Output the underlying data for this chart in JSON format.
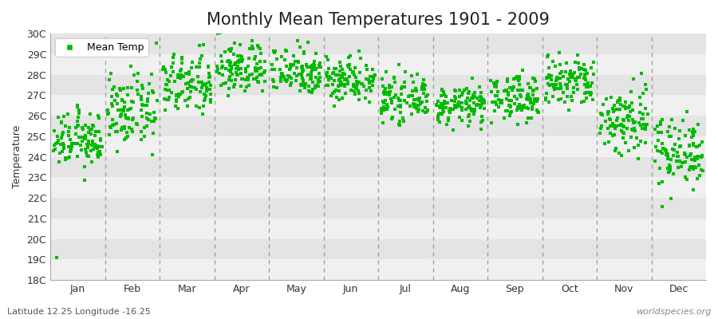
{
  "title": "Monthly Mean Temperatures 1901 - 2009",
  "ylabel": "Temperature",
  "xlabel_labels": [
    "Jan",
    "Feb",
    "Mar",
    "Apr",
    "May",
    "Jun",
    "Jul",
    "Aug",
    "Sep",
    "Oct",
    "Nov",
    "Dec"
  ],
  "ytick_labels": [
    "18C",
    "19C",
    "20C",
    "21C",
    "22C",
    "23C",
    "24C",
    "25C",
    "26C",
    "27C",
    "28C",
    "29C",
    "30C"
  ],
  "ytick_values": [
    18,
    19,
    20,
    21,
    22,
    23,
    24,
    25,
    26,
    27,
    28,
    29,
    30
  ],
  "ylim": [
    18,
    30
  ],
  "dot_color": "#00bb00",
  "bg_color": "#ffffff",
  "plot_bg_color": "#ffffff",
  "stripe_color_1": "#f0f0f0",
  "stripe_color_2": "#e4e4e4",
  "vline_color": "#999999",
  "subtitle": "Latitude 12.25 Longitude -16.25",
  "watermark": "worldspecies.org",
  "legend_label": "Mean Temp",
  "title_fontsize": 15,
  "label_fontsize": 9,
  "tick_fontsize": 9,
  "monthly_means": [
    24.8,
    26.2,
    27.5,
    28.3,
    28.2,
    27.8,
    26.8,
    26.5,
    26.9,
    27.6,
    25.8,
    24.3
  ],
  "monthly_stds": [
    0.65,
    0.85,
    0.75,
    0.65,
    0.6,
    0.55,
    0.5,
    0.45,
    0.55,
    0.65,
    0.9,
    0.85
  ]
}
